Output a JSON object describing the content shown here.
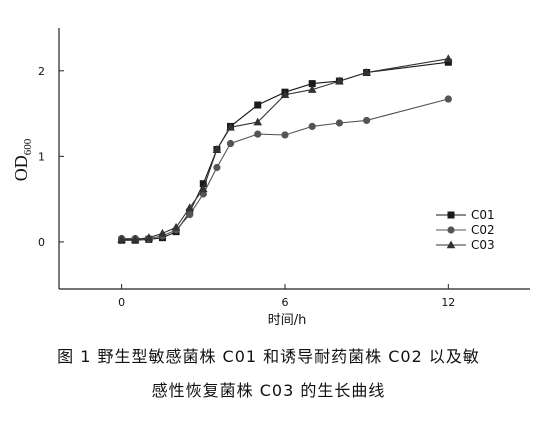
{
  "chart_data": {
    "type": "line",
    "ylabel_main": "OD",
    "ylabel_sub": "600",
    "xlabel": "时间/h",
    "xlim": [
      -2.3,
      15
    ],
    "ylim": [
      -0.55,
      2.5
    ],
    "xticks": [
      "0",
      "6",
      "12"
    ],
    "xtick_values": [
      0,
      6,
      12
    ],
    "yticks": [
      "0",
      "1",
      "2"
    ],
    "ytick_values": [
      0,
      1,
      2
    ],
    "legend_position": "lower-right",
    "series": [
      {
        "name": "C01",
        "marker": "square",
        "color": "#1a1a1a",
        "x": [
          0,
          0.5,
          1,
          1.5,
          2,
          2.5,
          3,
          3.5,
          4,
          5,
          6,
          7,
          8,
          9,
          12
        ],
        "y": [
          0.02,
          0.02,
          0.03,
          0.05,
          0.12,
          0.35,
          0.68,
          1.08,
          1.35,
          1.6,
          1.75,
          1.85,
          1.88,
          1.98,
          2.1
        ]
      },
      {
        "name": "C02",
        "marker": "circle",
        "color": "#555555",
        "x": [
          0,
          0.5,
          1,
          1.5,
          2,
          2.5,
          3,
          3.5,
          4,
          5,
          6,
          7,
          8,
          9,
          12
        ],
        "y": [
          0.04,
          0.04,
          0.04,
          0.07,
          0.14,
          0.32,
          0.56,
          0.87,
          1.15,
          1.26,
          1.25,
          1.35,
          1.39,
          1.42,
          1.67
        ]
      },
      {
        "name": "C03",
        "marker": "triangle",
        "color": "#333333",
        "x": [
          0,
          0.5,
          1,
          1.5,
          2,
          2.5,
          3,
          3.5,
          4,
          5,
          6,
          7,
          8,
          9,
          12
        ],
        "y": [
          0.03,
          0.03,
          0.05,
          0.1,
          0.17,
          0.4,
          0.62,
          1.08,
          1.34,
          1.4,
          1.72,
          1.78,
          1.88,
          1.98,
          2.14
        ]
      }
    ]
  },
  "caption": {
    "line1": "图 1   野生型敏感菌株 C01 和诱导耐药菌株 C02 以及敏",
    "line2": "感性恢复菌株 C03 的生长曲线"
  }
}
